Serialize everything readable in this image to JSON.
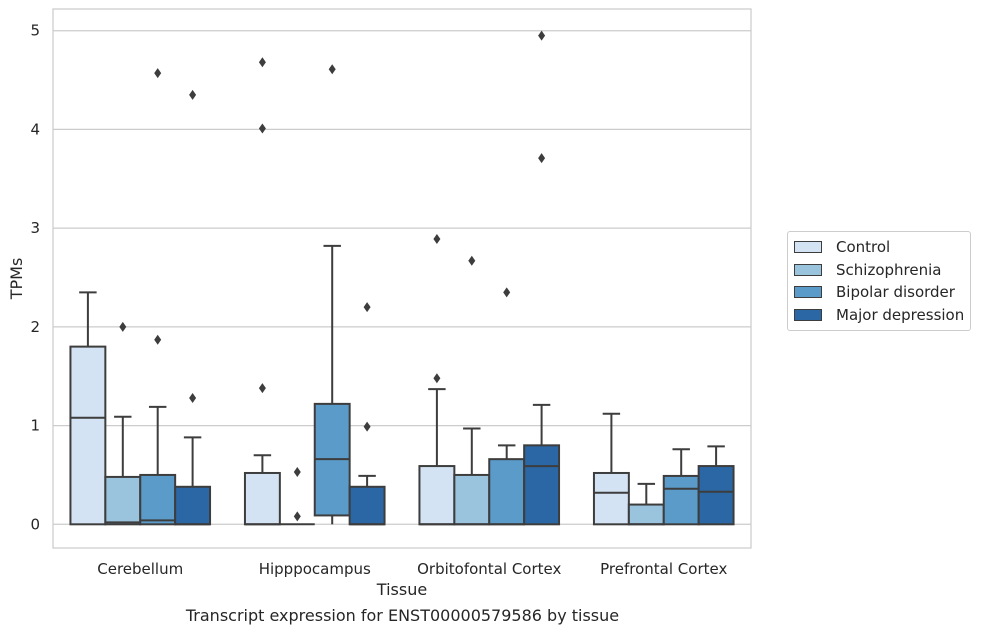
{
  "chart_data": {
    "type": "box",
    "title": "",
    "caption": "Transcript expression for ENST00000579586 by tissue",
    "xlabel": "Tissue",
    "ylabel": "TPMs",
    "ylim": [
      -0.24,
      5.22
    ],
    "yticks": [
      0,
      1,
      2,
      3,
      4,
      5
    ],
    "grid": true,
    "legend_position": "right",
    "categories": [
      "Cerebellum",
      "Hipppocampus",
      "Orbitofontal Cortex",
      "Prefrontal Cortex"
    ],
    "series": [
      {
        "name": "Control",
        "color": "#d3e3f3",
        "boxes": [
          {
            "whislo": 0,
            "q1": 0,
            "med": 1.08,
            "q3": 1.8,
            "whishi": 2.35,
            "fliers": []
          },
          {
            "whislo": 0,
            "q1": 0,
            "med": 0,
            "q3": 0.52,
            "whishi": 0.7,
            "fliers": [
              1.38,
              4.01,
              4.68
            ]
          },
          {
            "whislo": 0,
            "q1": 0,
            "med": 0,
            "q3": 0.59,
            "whishi": 1.37,
            "fliers": [
              1.48,
              2.89
            ]
          },
          {
            "whislo": 0,
            "q1": 0,
            "med": 0.32,
            "q3": 0.52,
            "whishi": 1.12,
            "fliers": []
          }
        ]
      },
      {
        "name": "Schizophrenia",
        "color": "#9ac3de",
        "boxes": [
          {
            "whislo": 0,
            "q1": 0,
            "med": 0.02,
            "q3": 0.48,
            "whishi": 1.09,
            "fliers": [
              2.0
            ]
          },
          {
            "whislo": 0,
            "q1": 0,
            "med": 0,
            "q3": 0,
            "whishi": 0,
            "fliers": [
              0.08,
              0.53
            ]
          },
          {
            "whislo": 0,
            "q1": 0,
            "med": 0,
            "q3": 0.5,
            "whishi": 0.97,
            "fliers": [
              2.67
            ]
          },
          {
            "whislo": 0,
            "q1": 0,
            "med": 0,
            "q3": 0.2,
            "whishi": 0.41,
            "fliers": []
          }
        ]
      },
      {
        "name": "Bipolar disorder",
        "color": "#5b9bc9",
        "boxes": [
          {
            "whislo": 0,
            "q1": 0,
            "med": 0.04,
            "q3": 0.5,
            "whishi": 1.19,
            "fliers": [
              1.87,
              4.57
            ]
          },
          {
            "whislo": 0,
            "q1": 0.09,
            "med": 0.66,
            "q3": 1.22,
            "whishi": 2.82,
            "fliers": [
              4.61
            ]
          },
          {
            "whislo": 0,
            "q1": 0,
            "med": 0,
            "q3": 0.66,
            "whishi": 0.8,
            "fliers": [
              2.35
            ]
          },
          {
            "whislo": 0,
            "q1": 0,
            "med": 0.36,
            "q3": 0.49,
            "whishi": 0.76,
            "fliers": []
          }
        ]
      },
      {
        "name": "Major depression",
        "color": "#2b67a5",
        "boxes": [
          {
            "whislo": 0,
            "q1": 0,
            "med": 0,
            "q3": 0.38,
            "whishi": 0.88,
            "fliers": [
              1.28,
              4.35
            ]
          },
          {
            "whislo": 0,
            "q1": 0,
            "med": 0,
            "q3": 0.38,
            "whishi": 0.49,
            "fliers": [
              0.99,
              2.2
            ]
          },
          {
            "whislo": 0,
            "q1": 0,
            "med": 0.59,
            "q3": 0.8,
            "whishi": 1.21,
            "fliers": [
              3.71,
              4.95
            ]
          },
          {
            "whislo": 0,
            "q1": 0,
            "med": 0.33,
            "q3": 0.59,
            "whishi": 0.79,
            "fliers": []
          }
        ]
      }
    ]
  }
}
